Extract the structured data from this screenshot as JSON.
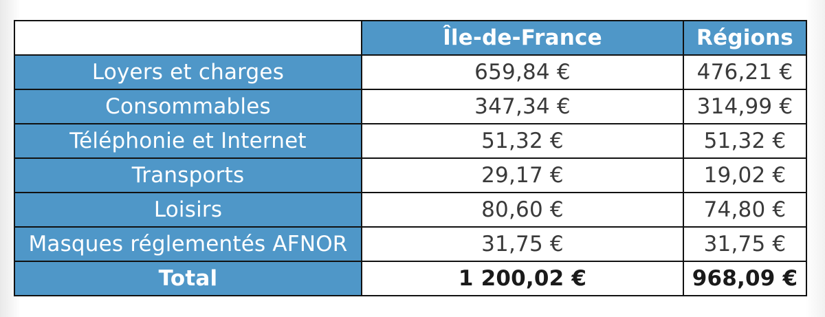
{
  "table": {
    "columns": [
      "",
      "Île-de-France",
      "Régions"
    ],
    "rows": [
      {
        "label": "Loyers et charges",
        "idf": "659,84 €",
        "regions": "476,21 €"
      },
      {
        "label": "Consommables",
        "idf": "347,34 €",
        "regions": "314,99 €"
      },
      {
        "label": "Téléphonie et Internet",
        "idf": "51,32 €",
        "regions": "51,32 €"
      },
      {
        "label": "Transports",
        "idf": "29,17 €",
        "regions": "19,02 €"
      },
      {
        "label": "Loisirs",
        "idf": "80,60 €",
        "regions": "74,80 €"
      },
      {
        "label": "Masques réglementés AFNOR",
        "idf": "31,75 €",
        "regions": "31,75 €"
      }
    ],
    "total": {
      "label": "Total",
      "idf": "1 200,02 €",
      "regions": "968,09 €"
    }
  },
  "colors": {
    "header_blue": "#4f97c8",
    "border": "#111111",
    "text_dark": "#3a3a3a"
  }
}
